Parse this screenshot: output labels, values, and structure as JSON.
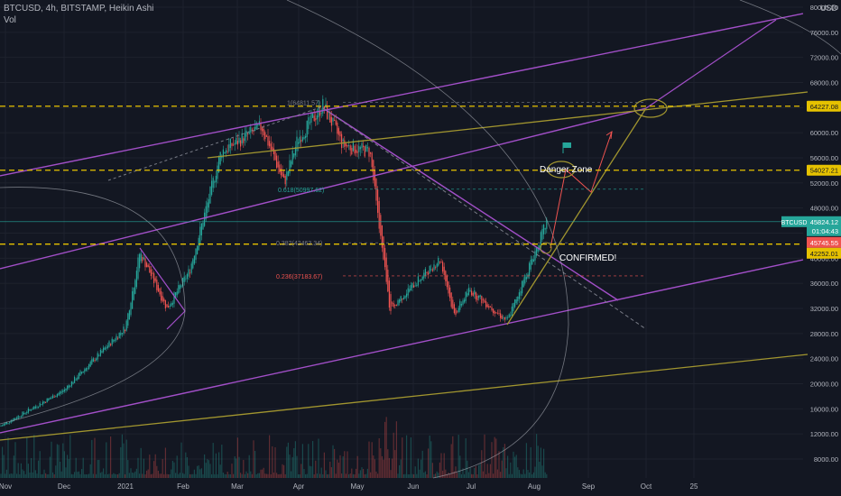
{
  "header": {
    "title": "BTCUSD, 4h, BITSTAMP, Heikin Ashi",
    "volume_label": "Vol",
    "currency": "USD"
  },
  "colors": {
    "background": "#131722",
    "grid": "#1e222d",
    "up": "#26a69a",
    "down": "#ef5350",
    "purple": "#a24fc8",
    "olive": "#a1952f",
    "dash_yellow": "#e6c200",
    "fib": "#787b86",
    "price_tag": "#26a69a"
  },
  "chart_data": {
    "type": "candlestick",
    "xlabel": "",
    "ylabel": "",
    "x_ticks": [
      "Nov",
      "Dec",
      "2021",
      "Feb",
      "Mar",
      "Apr",
      "May",
      "Jun",
      "Jul",
      "Aug",
      "Sep",
      "Oct",
      "25"
    ],
    "y_ticks": [
      "80000.00",
      "76000.00",
      "72000.00",
      "68000.00",
      "64000.00",
      "60000.00",
      "56000.00",
      "52000.00",
      "48000.00",
      "44000.00",
      "40000.00",
      "36000.00",
      "32000.00",
      "28000.00",
      "24000.00",
      "20000.00",
      "16000.00",
      "12000.00",
      "8000.00"
    ],
    "price_path": [
      [
        "Nov",
        13200
      ],
      [
        "Dec",
        19000
      ],
      [
        "2021",
        29000
      ],
      [
        "Jan",
        41000
      ],
      [
        "Jan",
        32000
      ],
      [
        "Feb",
        38000
      ],
      [
        "Feb",
        57000
      ],
      [
        "Mar",
        61000
      ],
      [
        "Mar",
        52000
      ],
      [
        "Apr",
        59000
      ],
      [
        "Apr",
        64400
      ],
      [
        "May",
        58000
      ],
      [
        "May",
        57000
      ],
      [
        "May",
        45000
      ],
      [
        "May",
        32000
      ],
      [
        "Jun",
        40000
      ],
      [
        "Jun",
        31000
      ],
      [
        "Jul",
        35000
      ],
      [
        "Jul",
        30000
      ],
      [
        "Aug",
        40000
      ],
      [
        "Aug",
        45800
      ]
    ],
    "horizontal_levels": [
      {
        "label": "64227.08",
        "value": 64227.08
      },
      {
        "label": "54027.21",
        "value": 54027.21
      },
      {
        "label": "42252.01",
        "value": 42252.01
      }
    ],
    "price_tags": [
      {
        "symbol": "BTCUSD",
        "value_label": "45824.12",
        "timer": "01:04:43",
        "value": 45824.12
      },
      {
        "label": "45745.55",
        "value": 45745.55
      },
      {
        "label": "42252.01",
        "value": 42252.01
      }
    ],
    "fib_levels": [
      {
        "label": "1(64811.57)",
        "value": 64811.57
      },
      {
        "label": "0.618(50997.62)",
        "value": 50997.62
      },
      {
        "label": "0.382(42463.34)",
        "value": 42463.34
      },
      {
        "label": "0.236(37183.67)",
        "value": 37183.67
      }
    ],
    "annotations": [
      {
        "text": "Danger Zone"
      },
      {
        "text": "CONFIRMED!"
      }
    ]
  }
}
